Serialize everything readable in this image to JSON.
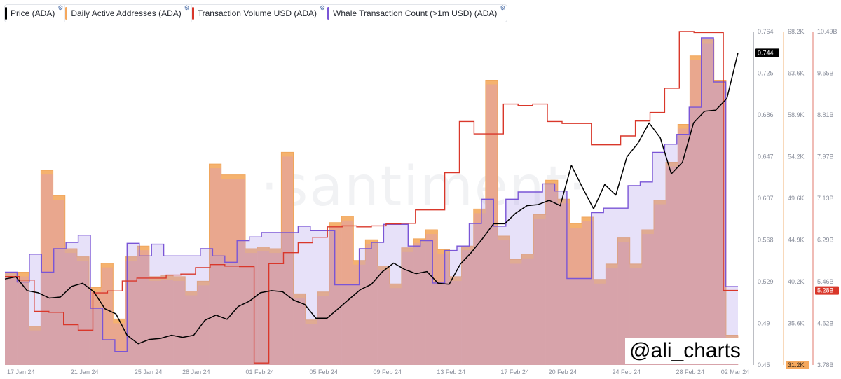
{
  "legend": [
    {
      "label": "Price (ADA)",
      "color": "#000000"
    },
    {
      "label": "Daily Active Addresses (ADA)",
      "color": "#f5a85c"
    },
    {
      "label": "Transaction Volume USD (ADA)",
      "color": "#d9372a"
    },
    {
      "label": "Whale Transaction Count (>1m USD) (ADA)",
      "color": "#7a55d6"
    }
  ],
  "gear_icon": "⚙",
  "watermark": "·santiment·",
  "credit": "@ali_charts",
  "x_axis_labels": [
    "17 Jan 24",
    "21 Jan 24",
    "25 Jan 24",
    "28 Jan 24",
    "01 Feb 24",
    "05 Feb 24",
    "09 Feb 24",
    "13 Feb 24",
    "17 Feb 24",
    "20 Feb 24",
    "24 Feb 24",
    "28 Feb 24",
    "02 Mar 24"
  ],
  "chart_data": {
    "type": "line",
    "x_start": "2024-01-16",
    "x_end": "2024-03-02",
    "grid": false,
    "legend_position": "top-left",
    "axes": {
      "price": {
        "ticks": [
          "0.764",
          "0.725",
          "0.686",
          "0.647",
          "0.607",
          "0.568",
          "0.529",
          "0.49",
          "0.45"
        ],
        "ylim": [
          0.45,
          0.764
        ],
        "current_label": "0.744",
        "current_value": 0.744
      },
      "daa": {
        "ticks": [
          "68.2K",
          "63.6K",
          "58.9K",
          "54.2K",
          "49.6K",
          "44.9K",
          "40.2K",
          "35.6K",
          "31.2K"
        ],
        "ylim": [
          31200,
          68200
        ],
        "current_label": "31.2K",
        "current_value": 31200
      },
      "volume": {
        "ticks": [
          "10.49B",
          "9.65B",
          "8.81B",
          "7.97B",
          "7.13B",
          "6.29B",
          "5.46B",
          "4.62B",
          "3.78B"
        ],
        "ylim": [
          3.78,
          10.49
        ],
        "current_label": "5.28B",
        "current_value": 5.28
      }
    },
    "series": [
      {
        "name": "Daily Active Addresses (ADA)",
        "type": "bar",
        "axis": "daa",
        "values": [
          41500,
          41500,
          35500,
          52800,
          50000,
          44100,
          43200,
          39800,
          42500,
          36300,
          43200,
          44400,
          41000,
          41100,
          41000,
          39400,
          40500,
          53500,
          52300,
          52300,
          44100,
          44300,
          44100,
          54800,
          39100,
          36200,
          39300,
          47000,
          47700,
          42800,
          45100,
          42200,
          40200,
          44200,
          45200,
          46200,
          44000,
          41000,
          44400,
          48500,
          62800,
          45500,
          42900,
          43500,
          47900,
          51700,
          49600,
          46900,
          47600,
          40700,
          42400,
          45300,
          42400,
          46200,
          49500,
          53700,
          57900,
          65500,
          67300,
          62800,
          34500
        ]
      },
      {
        "name": "Whale Transaction Count (>1m USD) (ADA)",
        "type": "step",
        "axis": "daa",
        "values": [
          41500,
          40400,
          43500,
          41500,
          44100,
          44800,
          45600,
          37500,
          34000,
          32700,
          44700,
          43300,
          44600,
          43300,
          43300,
          43300,
          44100,
          43300,
          42600,
          45000,
          45400,
          45900,
          45900,
          45900,
          46600,
          46100,
          46100,
          40100,
          40100,
          44100,
          44800,
          46800,
          46800,
          44400,
          45000,
          40300,
          43900,
          44400,
          46900,
          49600,
          46600,
          49600,
          50400,
          50400,
          51300,
          50500,
          40800,
          40800,
          48100,
          48600,
          48600,
          51100,
          51500,
          54800,
          55700,
          56800,
          59800,
          67500,
          62600,
          39900
        ]
      },
      {
        "name": "Transaction Volume USD (ADA)",
        "type": "step",
        "axis": "volume",
        "values": [
          5.56,
          5.49,
          4.86,
          4.84,
          4.59,
          4.48,
          5.23,
          5.27,
          5.47,
          5.53,
          5.53,
          5.59,
          5.61,
          5.74,
          5.8,
          5.77,
          5.76,
          3.82,
          5.82,
          6.04,
          6.24,
          6.35,
          6.56,
          6.58,
          6.56,
          6.58,
          6.62,
          6.63,
          6.9,
          6.9,
          7.65,
          8.68,
          8.43,
          8.43,
          9.03,
          9.0,
          9.03,
          8.68,
          8.64,
          8.64,
          8.21,
          8.21,
          8.39,
          8.69,
          8.86,
          9.35,
          10.49,
          10.47,
          10.47,
          5.28
        ]
      },
      {
        "name": "Price (ADA)",
        "type": "line",
        "axis": "price",
        "values": [
          0.531,
          0.533,
          0.52,
          0.518,
          0.513,
          0.514,
          0.524,
          0.527,
          0.519,
          0.503,
          0.498,
          0.478,
          0.47,
          0.474,
          0.475,
          0.478,
          0.476,
          0.478,
          0.492,
          0.497,
          0.493,
          0.505,
          0.51,
          0.518,
          0.52,
          0.519,
          0.511,
          0.507,
          0.494,
          0.494,
          0.503,
          0.512,
          0.521,
          0.526,
          0.538,
          0.546,
          0.54,
          0.536,
          0.538,
          0.527,
          0.526,
          0.545,
          0.556,
          0.569,
          0.583,
          0.583,
          0.593,
          0.6,
          0.601,
          0.605,
          0.6,
          0.638,
          0.617,
          0.597,
          0.62,
          0.61,
          0.646,
          0.659,
          0.678,
          0.664,
          0.63,
          0.641,
          0.678,
          0.689,
          0.69,
          0.701,
          0.744
        ]
      }
    ]
  }
}
